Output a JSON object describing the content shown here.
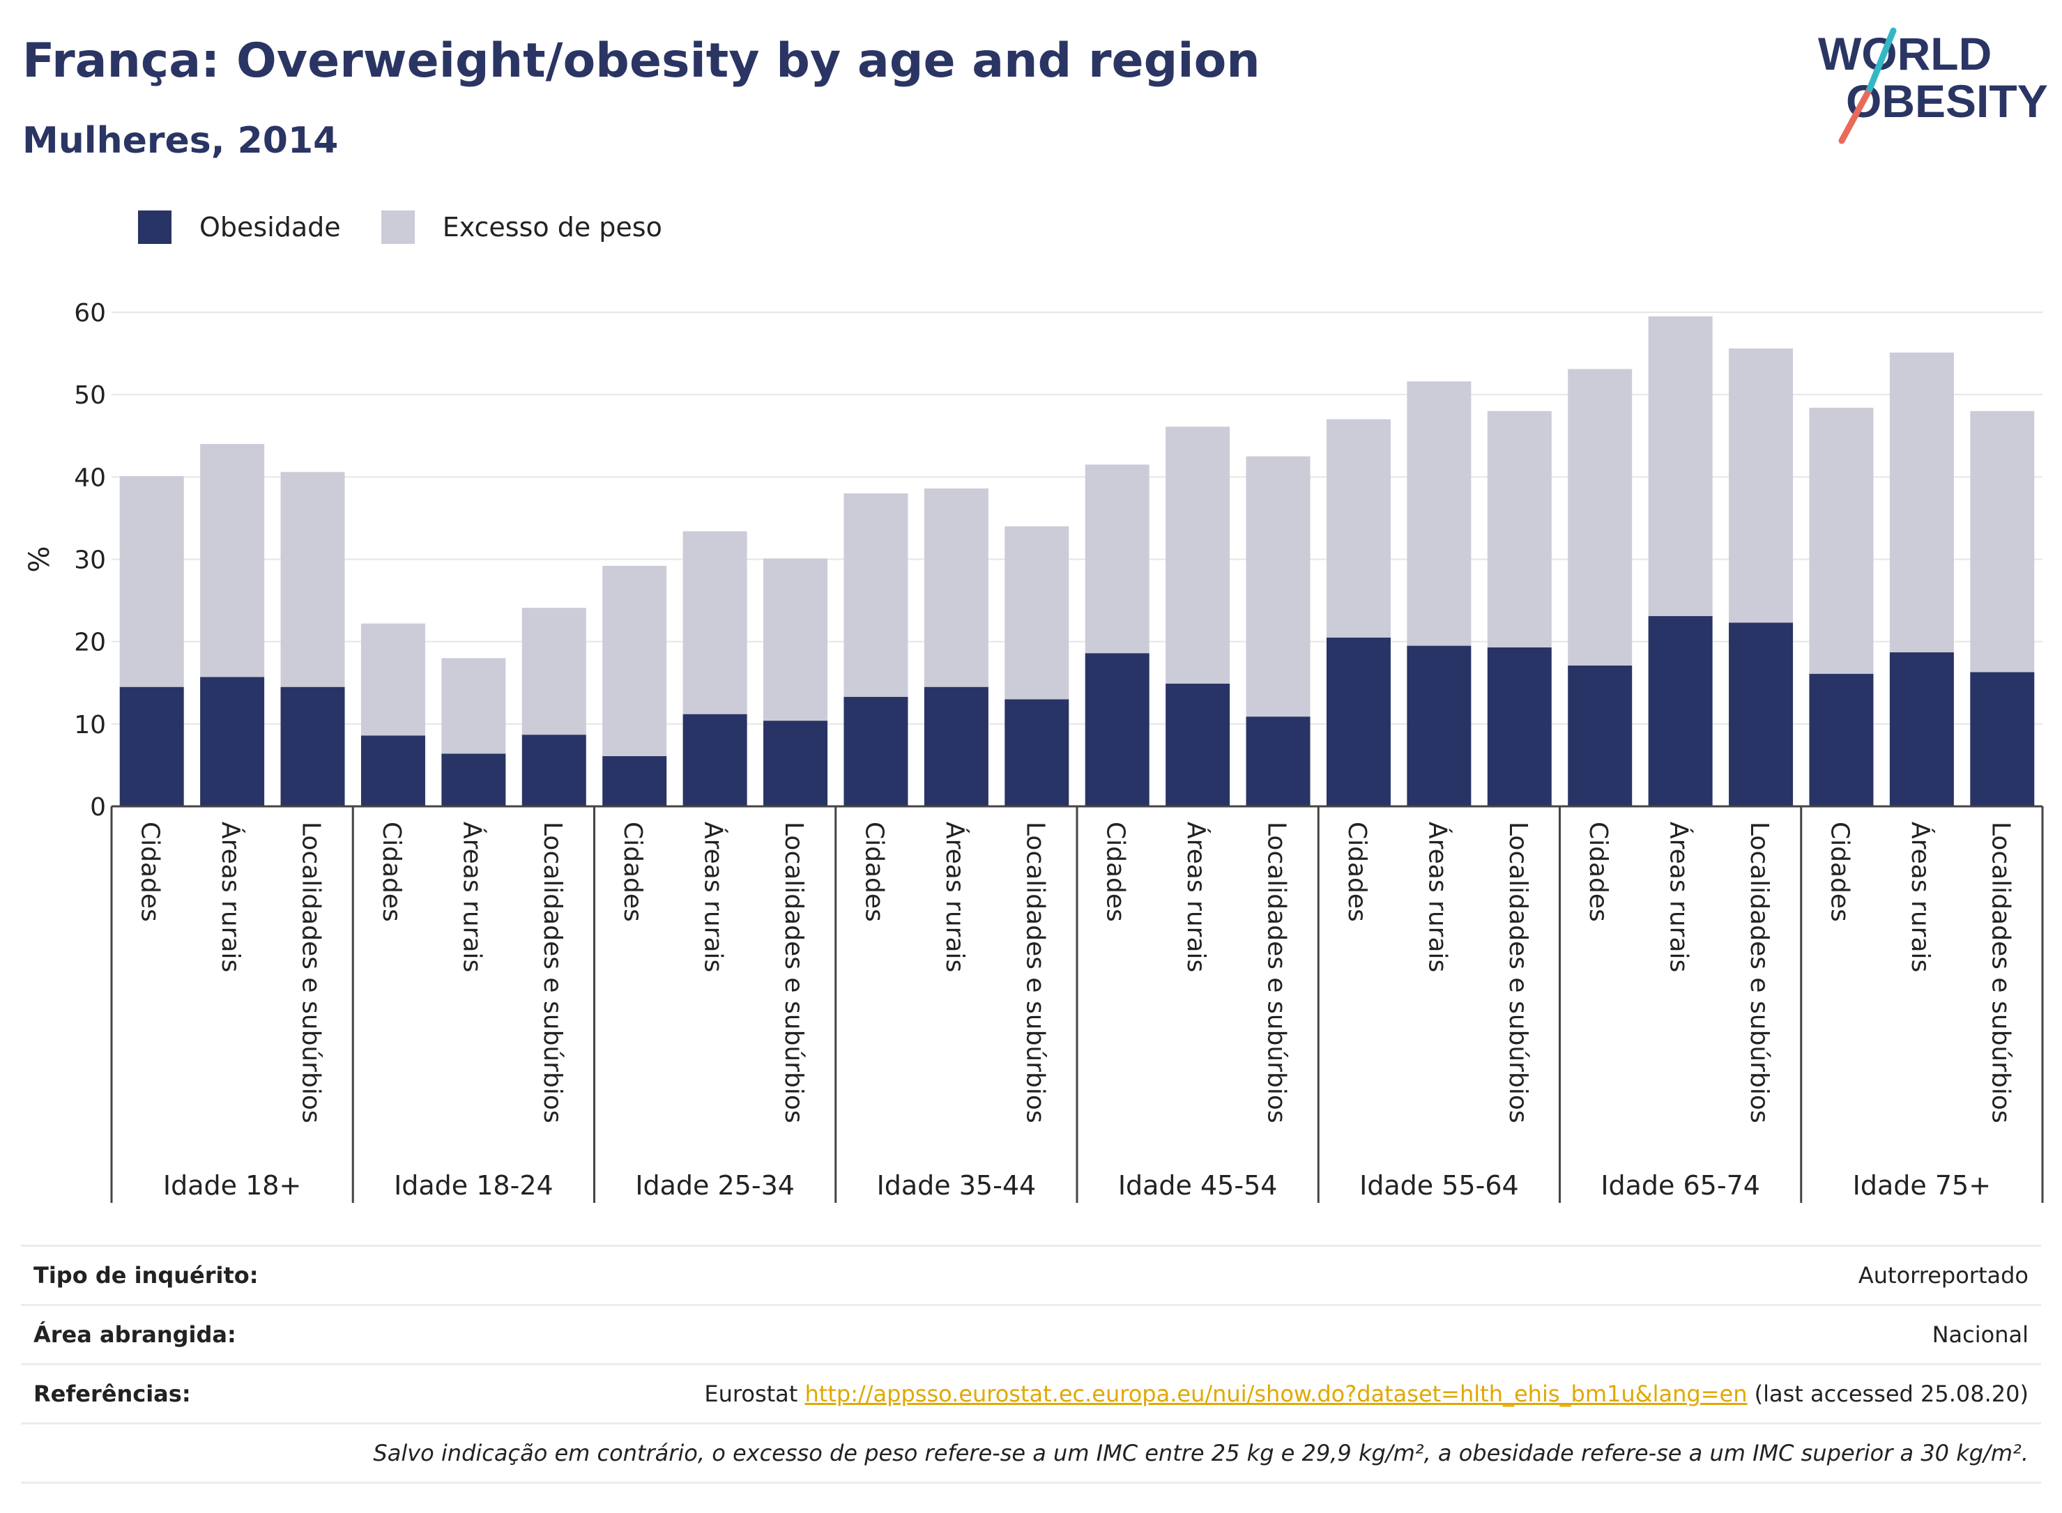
{
  "header": {
    "title": "França: Overweight/obesity by age and region",
    "subtitle": "Mulheres, 2014"
  },
  "logo": {
    "line1": "WORLD",
    "line2": "OBESITY"
  },
  "colors": {
    "obesity": "#283465",
    "overweight": "#cbccd8",
    "grid": "#e6e6e6",
    "axis": "#444444",
    "link": "#e0a800",
    "logo_blue": "#2b3564",
    "logo_teal": "#35b6c5",
    "logo_red": "#e86a5b"
  },
  "chart_data": {
    "type": "bar",
    "stacked": true,
    "ylabel": "%",
    "ylim": [
      0,
      60
    ],
    "yticks": [
      0,
      10,
      20,
      30,
      40,
      50,
      60
    ],
    "grid": true,
    "legend": {
      "position": "top-left",
      "entries": [
        "Obesidade",
        "Excesso de peso"
      ]
    },
    "groups": [
      "Idade 18+",
      "Idade 18-24",
      "Idade 25-34",
      "Idade 35-44",
      "Idade 45-54",
      "Idade 55-64",
      "Idade 65-74",
      "Idade 75+"
    ],
    "subcategories": [
      "Cidades",
      "Áreas rurais",
      "Localidades e subúrbios"
    ],
    "series": [
      {
        "name": "Obesidade",
        "color": "#283465",
        "values": [
          14.5,
          15.7,
          14.5,
          8.6,
          6.4,
          8.7,
          6.1,
          11.2,
          10.4,
          13.3,
          14.5,
          13.0,
          18.6,
          14.9,
          10.9,
          20.5,
          19.5,
          19.3,
          17.1,
          23.1,
          22.3,
          16.1,
          18.7,
          16.3
        ]
      },
      {
        "name": "Excesso de peso",
        "color": "#cbccd8",
        "values": [
          25.6,
          28.3,
          26.1,
          13.6,
          11.6,
          15.4,
          23.1,
          22.2,
          19.7,
          24.7,
          24.1,
          21.0,
          22.9,
          31.2,
          31.6,
          26.5,
          32.1,
          28.7,
          36.0,
          36.4,
          33.3,
          32.3,
          36.4,
          31.7
        ]
      }
    ]
  },
  "info": {
    "survey_label": "Tipo de inquérito:",
    "survey_value": "Autorreportado",
    "area_label": "Área abrangida:",
    "area_value": "Nacional",
    "ref_label": "Referências:",
    "ref_prefix": "Eurostat",
    "ref_link": "http://appsso.eurostat.ec.europa.eu/nui/show.do?dataset=hlth_ehis_bm1u&lang=en",
    "ref_suffix": "(last accessed 25.08.20)",
    "note": "Salvo indicação em contrário, o excesso de peso refere-se a um IMC entre 25 kg e 29,9 kg/m², a obesidade refere-se a um IMC superior a 30 kg/m²."
  }
}
